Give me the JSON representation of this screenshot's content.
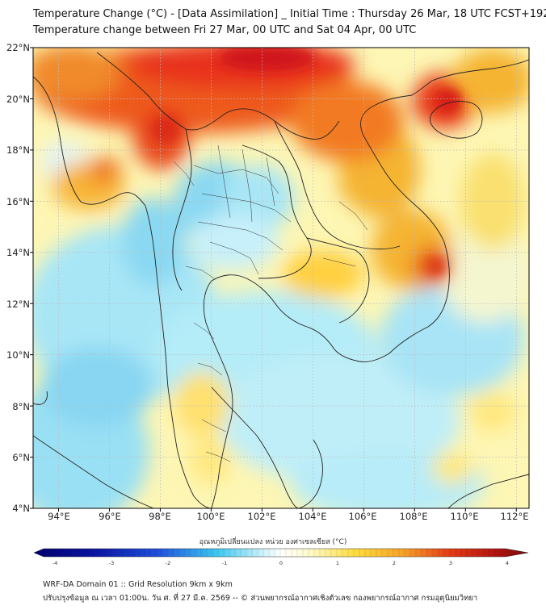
{
  "header": {
    "title_line1": "Temperature Change (°C) - [Data Assimilation] _ Initial Time : Thursday 26 Mar, 18 UTC FCST+192",
    "title_line2": "Temperature change between Fri 27 Mar, 00 UTC and Sat 04 Apr, 00 UTC"
  },
  "map": {
    "lat_labels": [
      "22°N",
      "20°N",
      "18°N",
      "16°N",
      "14°N",
      "12°N",
      "10°N",
      "8°N",
      "6°N",
      "4°N"
    ],
    "lon_labels": [
      "94°E",
      "96°E",
      "98°E",
      "100°E",
      "102°E",
      "104°E",
      "106°E",
      "108°E",
      "110°E",
      "112°E"
    ]
  },
  "colorbar": {
    "title": "อุณหภูมิเปลี่ยนแปลง หน่วย องศาเซลเซียส (°C)",
    "ticks": [
      "-4",
      "-3",
      "-2",
      "-1",
      "0",
      "1",
      "2",
      "3",
      "4"
    ],
    "colors": {
      "dark_blue": "#00006e",
      "blue": "#1e50dc",
      "cyan": "#3cc8f0",
      "light_cyan": "#c8f0fa",
      "white": "#ffffff",
      "pale_yellow": "#fffac8",
      "yellow": "#ffdc3c",
      "orange": "#f5781e",
      "red": "#e61e14",
      "dark_red": "#780a0a"
    }
  },
  "footer": {
    "line1": "WRF-DA Domain 01 :: Grid Resolution 9km x 9km",
    "line2": "ปรับปรุงข้อมูล ณ เวลา 01:00น. วัน ศ. ที่ 27 มี.ค. 2569 -- © ส่วนพยากรณ์อากาศเชิงตัวเลข กองพยากรณ์อากาศ กรมอุตุนิยมวิทยา"
  }
}
